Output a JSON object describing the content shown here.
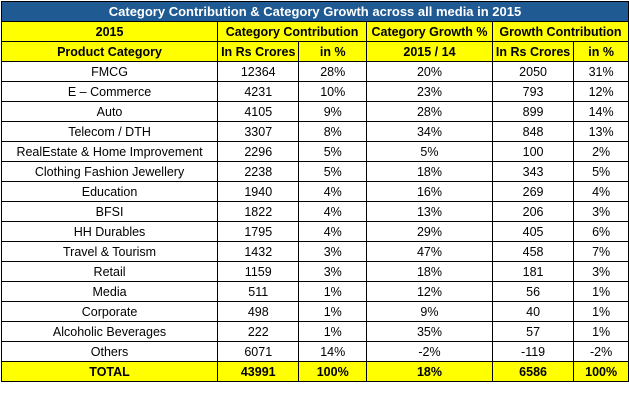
{
  "title": "Category Contribution & Category Growth across all media in 2015",
  "header1": [
    "2015",
    "Category Contribution",
    "Category Growth %",
    "Growth Contribution"
  ],
  "header2": [
    "Product Category",
    "In Rs Crores",
    "in %",
    "2015 / 14",
    "In Rs Crores",
    "in %"
  ],
  "rows": [
    [
      "FMCG",
      "12364",
      "28%",
      "20%",
      "2050",
      "31%"
    ],
    [
      "E – Commerce",
      "4231",
      "10%",
      "23%",
      "793",
      "12%"
    ],
    [
      "Auto",
      "4105",
      "9%",
      "28%",
      "899",
      "14%"
    ],
    [
      "Telecom / DTH",
      "3307",
      "8%",
      "34%",
      "848",
      "13%"
    ],
    [
      "RealEstate & Home Improvement",
      "2296",
      "5%",
      "5%",
      "100",
      "2%"
    ],
    [
      "Clothing Fashion Jewellery",
      "2238",
      "5%",
      "18%",
      "343",
      "5%"
    ],
    [
      "Education",
      "1940",
      "4%",
      "16%",
      "269",
      "4%"
    ],
    [
      "BFSI",
      "1822",
      "4%",
      "13%",
      "206",
      "3%"
    ],
    [
      "HH Durables",
      "1795",
      "4%",
      "29%",
      "405",
      "6%"
    ],
    [
      "Travel & Tourism",
      "1432",
      "3%",
      "47%",
      "458",
      "7%"
    ],
    [
      "Retail",
      "1159",
      "3%",
      "18%",
      "181",
      "3%"
    ],
    [
      "Media",
      "511",
      "1%",
      "12%",
      "56",
      "1%"
    ],
    [
      "Corporate",
      "498",
      "1%",
      "9%",
      "40",
      "1%"
    ],
    [
      "Alcoholic Beverages",
      "222",
      "1%",
      "35%",
      "57",
      "1%"
    ],
    [
      "Others",
      "6071",
      "14%",
      "-2%",
      "-119",
      "-2%"
    ]
  ],
  "total": [
    "TOTAL",
    "43991",
    "100%",
    "18%",
    "6586",
    "100%"
  ],
  "colors": {
    "title_bg": "#1f5a93",
    "title_text": "#ffffff",
    "header_bg": "#ffff00",
    "grid": "#000000"
  }
}
